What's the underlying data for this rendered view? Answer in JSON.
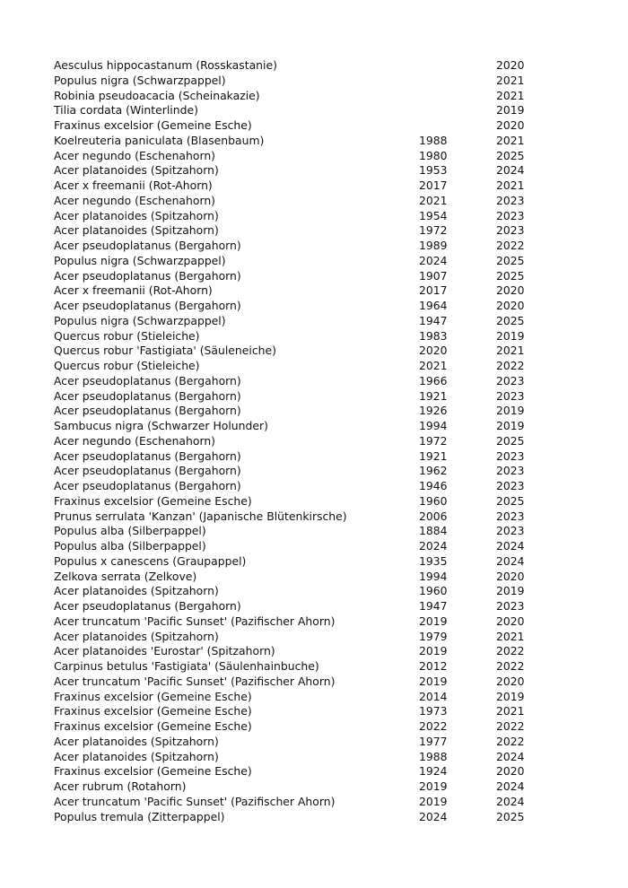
{
  "rows": [
    [
      "Aesculus hippocastanum (Rosskastanie)",
      "",
      "2020"
    ],
    [
      "Populus nigra (Schwarzpappel)",
      "",
      "2021"
    ],
    [
      "Robinia pseudoacacia (Scheinakazie)",
      "",
      "2021"
    ],
    [
      "Tilia cordata (Winterlinde)",
      "",
      "2019"
    ],
    [
      "Fraxinus excelsior (Gemeine Esche)",
      "",
      "2020"
    ],
    [
      "Koelreuteria paniculata (Blasenbaum)",
      "1988",
      "2021"
    ],
    [
      "Acer negundo (Eschenahorn)",
      "1980",
      "2025"
    ],
    [
      "Acer platanoides (Spitzahorn)",
      "1953",
      "2024"
    ],
    [
      "Acer x freemanii (Rot-Ahorn)",
      "2017",
      "2021"
    ],
    [
      "Acer negundo (Eschenahorn)",
      "2021",
      "2023"
    ],
    [
      "Acer platanoides (Spitzahorn)",
      "1954",
      "2023"
    ],
    [
      "Acer platanoides (Spitzahorn)",
      "1972",
      "2023"
    ],
    [
      "Acer pseudoplatanus (Bergahorn)",
      "1989",
      "2022"
    ],
    [
      "Populus nigra (Schwarzpappel)",
      "2024",
      "2025"
    ],
    [
      "Acer pseudoplatanus (Bergahorn)",
      "1907",
      "2025"
    ],
    [
      "Acer x freemanii (Rot-Ahorn)",
      "2017",
      "2020"
    ],
    [
      "Acer pseudoplatanus (Bergahorn)",
      "1964",
      "2020"
    ],
    [
      "Populus nigra (Schwarzpappel)",
      "1947",
      "2025"
    ],
    [
      "Quercus robur (Stieleiche)",
      "1983",
      "2019"
    ],
    [
      "Quercus robur 'Fastigiata' (Säuleneiche)",
      "2020",
      "2021"
    ],
    [
      "Quercus robur (Stieleiche)",
      "2021",
      "2022"
    ],
    [
      "Acer pseudoplatanus (Bergahorn)",
      "1966",
      "2023"
    ],
    [
      "Acer pseudoplatanus (Bergahorn)",
      "1921",
      "2023"
    ],
    [
      "Acer pseudoplatanus (Bergahorn)",
      "1926",
      "2019"
    ],
    [
      "Sambucus nigra (Schwarzer Holunder)",
      "1994",
      "2019"
    ],
    [
      "Acer negundo (Eschenahorn)",
      "1972",
      "2025"
    ],
    [
      "Acer pseudoplatanus (Bergahorn)",
      "1921",
      "2023"
    ],
    [
      "Acer pseudoplatanus (Bergahorn)",
      "1962",
      "2023"
    ],
    [
      "Acer pseudoplatanus (Bergahorn)",
      "1946",
      "2023"
    ],
    [
      "Fraxinus excelsior (Gemeine Esche)",
      "1960",
      "2025"
    ],
    [
      "Prunus serrulata 'Kanzan' (Japanische Blütenkirsche)",
      "2006",
      "2023"
    ],
    [
      "Populus alba (Silberpappel)",
      "1884",
      "2023"
    ],
    [
      "Populus alba (Silberpappel)",
      "2024",
      "2024"
    ],
    [
      "Populus x canescens (Graupappel)",
      "1935",
      "2024"
    ],
    [
      "Zelkova serrata (Zelkove)",
      "1994",
      "2020"
    ],
    [
      "Acer platanoides (Spitzahorn)",
      "1960",
      "2019"
    ],
    [
      "Acer pseudoplatanus (Bergahorn)",
      "1947",
      "2023"
    ],
    [
      "Acer truncatum 'Pacific Sunset' (Pazifischer Ahorn)",
      "2019",
      "2020"
    ],
    [
      "Acer platanoides (Spitzahorn)",
      "1979",
      "2021"
    ],
    [
      "Acer platanoides 'Eurostar' (Spitzahorn)",
      "2019",
      "2022"
    ],
    [
      "Carpinus betulus 'Fastigiata' (Säulenhainbuche)",
      "2012",
      "2022"
    ],
    [
      "Acer truncatum 'Pacific Sunset' (Pazifischer Ahorn)",
      "2019",
      "2020"
    ],
    [
      "Fraxinus excelsior (Gemeine Esche)",
      "2014",
      "2019"
    ],
    [
      "Fraxinus excelsior (Gemeine Esche)",
      "1973",
      "2021"
    ],
    [
      "Fraxinus excelsior (Gemeine Esche)",
      "2022",
      "2022"
    ],
    [
      "Acer platanoides (Spitzahorn)",
      "1977",
      "2022"
    ],
    [
      "Acer platanoides (Spitzahorn)",
      "1988",
      "2024"
    ],
    [
      "Fraxinus excelsior (Gemeine Esche)",
      "1924",
      "2020"
    ],
    [
      "Acer rubrum (Rotahorn)",
      "2019",
      "2024"
    ],
    [
      "Acer truncatum 'Pacific Sunset' (Pazifischer Ahorn)",
      "2019",
      "2024"
    ],
    [
      "Populus tremula (Zitterpappel)",
      "2024",
      "2025"
    ]
  ]
}
